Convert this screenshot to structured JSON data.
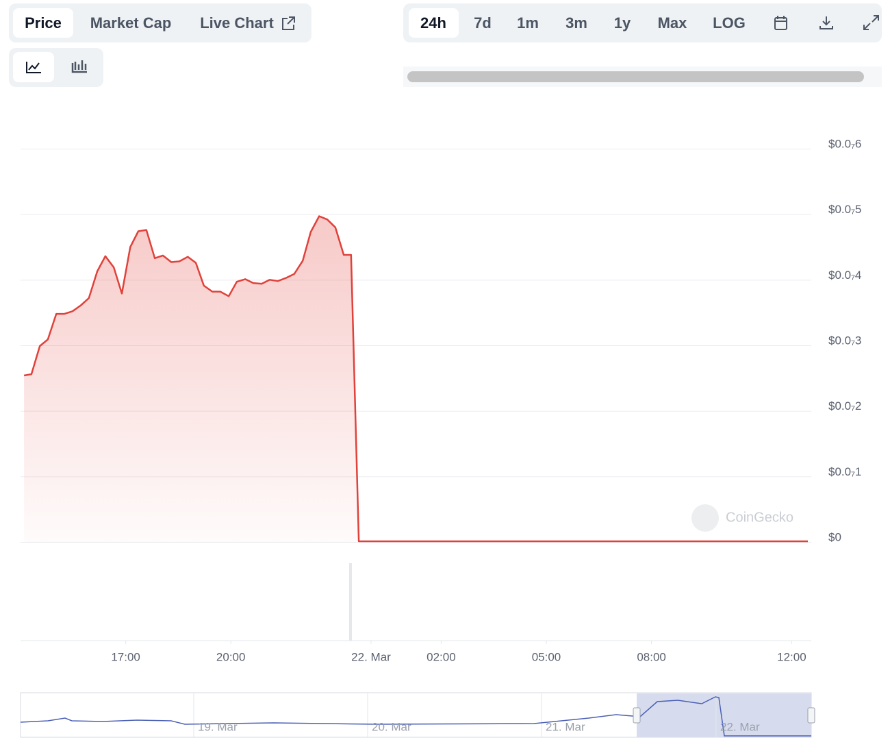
{
  "tabs": [
    "Price",
    "Market Cap",
    "Live Chart"
  ],
  "ranges": [
    "24h",
    "7d",
    "1m",
    "3m",
    "1y",
    "Max",
    "LOG"
  ],
  "watermark": "CoinGecko",
  "navigator_labels": [
    "19. Mar",
    "20. Mar",
    "21. Mar",
    "22. Mar"
  ],
  "chart_data": {
    "type": "area",
    "x": [
      14.1,
      14.31,
      14.55,
      14.78,
      15.02,
      15.25,
      15.48,
      15.72,
      15.95,
      16.19,
      16.42,
      16.66,
      16.89,
      17.13,
      17.36,
      17.59,
      17.83,
      18.06,
      18.3,
      18.53,
      18.77,
      19.0,
      19.23,
      19.47,
      19.7,
      19.94,
      20.17,
      20.41,
      20.64,
      20.88,
      21.11,
      21.34,
      21.58,
      21.81,
      22.05,
      22.28,
      22.52,
      22.75,
      22.98,
      23.22,
      23.43,
      23.65,
      27.09,
      31.0,
      36.46
    ],
    "series": [
      {
        "name": "Price",
        "color": "#e0413a",
        "values": [
          2.54e-08,
          2.56e-08,
          2.99e-08,
          3.09e-08,
          3.48e-08,
          3.48e-08,
          3.52e-08,
          3.61e-08,
          3.72e-08,
          4.13e-08,
          4.36e-08,
          4.19e-08,
          3.79e-08,
          4.5e-08,
          4.74e-08,
          4.76e-08,
          4.33e-08,
          4.37e-08,
          4.27e-08,
          4.28e-08,
          4.35e-08,
          4.26e-08,
          3.91e-08,
          3.82e-08,
          3.82e-08,
          3.75e-08,
          3.97e-08,
          4.01e-08,
          3.95e-08,
          3.94e-08,
          4e-08,
          3.98e-08,
          4.03e-08,
          4.09e-08,
          4.29e-08,
          4.73e-08,
          4.97e-08,
          4.92e-08,
          4.8e-08,
          4.38e-08,
          4.38e-08,
          1e-10,
          1e-10,
          1e-10,
          1e-10
        ]
      }
    ],
    "xlim": [
      14,
      36.5
    ],
    "xticks": [
      {
        "value": 17,
        "label": "17:00"
      },
      {
        "value": 20,
        "label": "20:00"
      },
      {
        "value": 24,
        "label": "22. Mar"
      },
      {
        "value": 26,
        "label": "02:00"
      },
      {
        "value": 29,
        "label": "05:00"
      },
      {
        "value": 32,
        "label": "08:00"
      },
      {
        "value": 36,
        "label": "12:00"
      }
    ],
    "ylim": [
      0,
      6e-08
    ],
    "yticks": [
      {
        "value": 0,
        "label": "$0"
      },
      {
        "value": 1e-08,
        "label": "$0.0₇1"
      },
      {
        "value": 2e-08,
        "label": "$0.0₇2"
      },
      {
        "value": 3e-08,
        "label": "$0.0₇3"
      },
      {
        "value": 4e-08,
        "label": "$0.0₇4"
      },
      {
        "value": 5e-08,
        "label": "$0.0₇5"
      },
      {
        "value": 6e-08,
        "label": "$0.0₇6"
      }
    ],
    "grid": true
  }
}
